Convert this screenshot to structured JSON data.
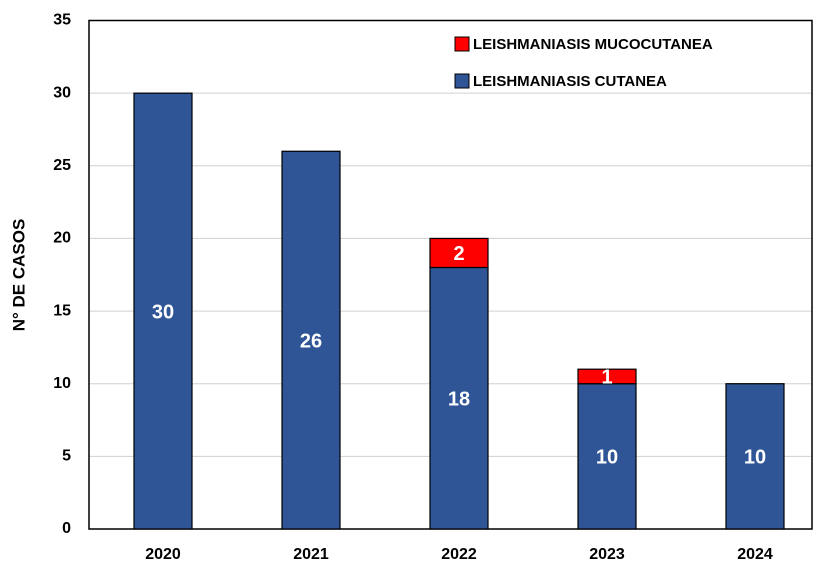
{
  "chart_data": {
    "type": "stacked_bar",
    "y_label": "N° DE CASOS",
    "categories": [
      "2020",
      "2021",
      "2022",
      "2023",
      "2024"
    ],
    "series": [
      {
        "name": "LEISHMANIASIS CUTANEA",
        "color": "#2f5597",
        "values": [
          30,
          26,
          18,
          10,
          10
        ]
      },
      {
        "name": "LEISHMANIASIS MUCOCUTANEA",
        "color": "#ff0000",
        "values": [
          null,
          null,
          2,
          1,
          null
        ]
      }
    ],
    "ylim": [
      0,
      35
    ],
    "yticks": [
      0,
      5,
      10,
      15,
      20,
      25,
      30,
      35
    ],
    "grid": true,
    "legend": "top-right"
  }
}
